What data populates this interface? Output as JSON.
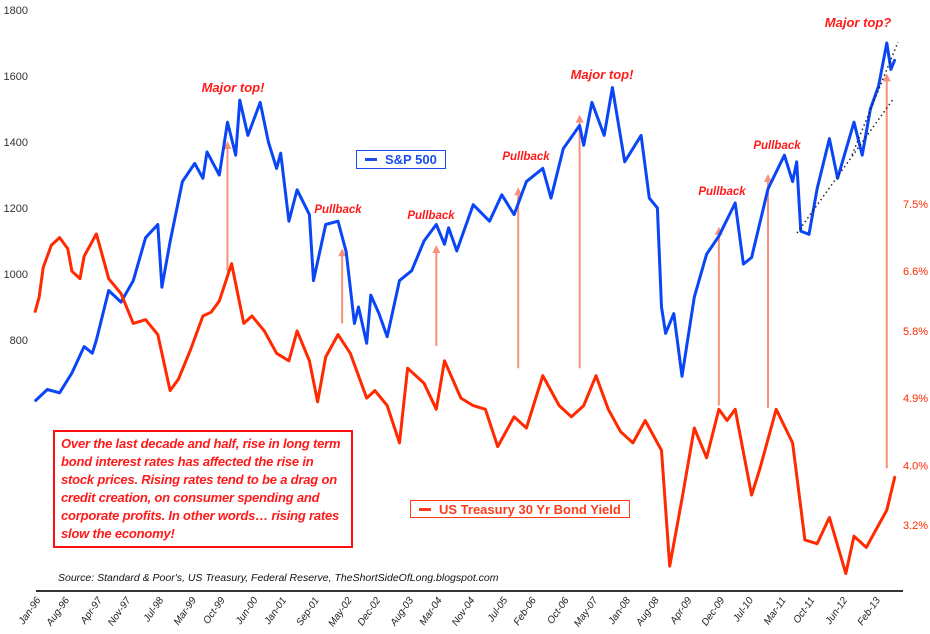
{
  "chart_data": {
    "type": "line",
    "title": "",
    "xlabel": "",
    "ylabel": "",
    "grid": false,
    "x_tick_labels": [
      "Jan-96",
      "Aug-96",
      "Apr-97",
      "Nov-97",
      "Jul-98",
      "Mar-99",
      "Oct-99",
      "Jun-00",
      "Jan-01",
      "Sep-01",
      "May-02",
      "Dec-02",
      "Aug-03",
      "Mar-04",
      "Nov-04",
      "Jul-05",
      "Feb-06",
      "Oct-06",
      "May-07",
      "Jan-08",
      "Aug-08",
      "Apr-09",
      "Dec-09",
      "Jul-10",
      "Mar-11",
      "Oct-11",
      "Jun-12",
      "Feb-13"
    ],
    "y_left": {
      "ticks": [
        "800",
        "1000",
        "1200",
        "1400",
        "1600",
        "1800"
      ],
      "range": [
        600,
        1800
      ]
    },
    "y_right": {
      "ticks": [
        "3.2%",
        "4.0%",
        "4.9%",
        "5.8%",
        "6.6%",
        "7.5%"
      ],
      "range_percent": [
        2.5,
        8.5
      ]
    },
    "series": [
      {
        "name": "S&P 500",
        "axis": "left",
        "color": "#0a46f5",
        "points": [
          [
            "1996-01",
            615
          ],
          [
            "1996-04",
            650
          ],
          [
            "1996-07",
            640
          ],
          [
            "1996-10",
            700
          ],
          [
            "1997-01",
            780
          ],
          [
            "1997-03",
            760
          ],
          [
            "1997-04",
            800
          ],
          [
            "1997-07",
            950
          ],
          [
            "1997-10",
            915
          ],
          [
            "1998-01",
            980
          ],
          [
            "1998-04",
            1110
          ],
          [
            "1998-07",
            1150
          ],
          [
            "1998-08",
            960
          ],
          [
            "1998-10",
            1098
          ],
          [
            "1999-01",
            1280
          ],
          [
            "1999-04",
            1335
          ],
          [
            "1999-06",
            1290
          ],
          [
            "1999-07",
            1370
          ],
          [
            "1999-10",
            1300
          ],
          [
            "1999-12",
            1460
          ],
          [
            "2000-02",
            1360
          ],
          [
            "2000-03",
            1527
          ],
          [
            "2000-05",
            1420
          ],
          [
            "2000-08",
            1520
          ],
          [
            "2000-10",
            1400
          ],
          [
            "2000-12",
            1320
          ],
          [
            "2001-01",
            1366
          ],
          [
            "2001-03",
            1160
          ],
          [
            "2001-05",
            1255
          ],
          [
            "2001-08",
            1180
          ],
          [
            "2001-09",
            980
          ],
          [
            "2001-12",
            1150
          ],
          [
            "2002-03",
            1160
          ],
          [
            "2002-05",
            1067
          ],
          [
            "2002-07",
            850
          ],
          [
            "2002-08",
            900
          ],
          [
            "2002-10",
            790
          ],
          [
            "2002-11",
            936
          ],
          [
            "2003-01",
            880
          ],
          [
            "2003-03",
            810
          ],
          [
            "2003-06",
            980
          ],
          [
            "2003-09",
            1010
          ],
          [
            "2003-12",
            1100
          ],
          [
            "2004-03",
            1150
          ],
          [
            "2004-05",
            1090
          ],
          [
            "2004-06",
            1140
          ],
          [
            "2004-08",
            1070
          ],
          [
            "2004-12",
            1210
          ],
          [
            "2005-04",
            1160
          ],
          [
            "2005-07",
            1240
          ],
          [
            "2005-10",
            1180
          ],
          [
            "2006-01",
            1280
          ],
          [
            "2006-05",
            1320
          ],
          [
            "2006-07",
            1230
          ],
          [
            "2006-10",
            1380
          ],
          [
            "2007-02",
            1450
          ],
          [
            "2007-03",
            1390
          ],
          [
            "2007-05",
            1520
          ],
          [
            "2007-08",
            1420
          ],
          [
            "2007-10",
            1565
          ],
          [
            "2008-01",
            1340
          ],
          [
            "2008-05",
            1420
          ],
          [
            "2008-07",
            1230
          ],
          [
            "2008-09",
            1200
          ],
          [
            "2008-10",
            900
          ],
          [
            "2008-11",
            820
          ],
          [
            "2009-01",
            880
          ],
          [
            "2009-03",
            690
          ],
          [
            "2009-06",
            930
          ],
          [
            "2009-09",
            1060
          ],
          [
            "2009-12",
            1115
          ],
          [
            "2010-04",
            1215
          ],
          [
            "2010-06",
            1030
          ],
          [
            "2010-08",
            1050
          ],
          [
            "2010-12",
            1258
          ],
          [
            "2011-04",
            1360
          ],
          [
            "2011-06",
            1280
          ],
          [
            "2011-07",
            1340
          ],
          [
            "2011-08",
            1130
          ],
          [
            "2011-10",
            1120
          ],
          [
            "2011-12",
            1258
          ],
          [
            "2012-03",
            1410
          ],
          [
            "2012-05",
            1290
          ],
          [
            "2012-09",
            1460
          ],
          [
            "2012-11",
            1360
          ],
          [
            "2013-01",
            1500
          ],
          [
            "2013-03",
            1570
          ],
          [
            "2013-05",
            1700
          ],
          [
            "2013-06",
            1620
          ],
          [
            "2013-07",
            1650
          ]
        ]
      },
      {
        "name": "US Treasury 30 Yr Bond Yield",
        "axis": "right",
        "color": "#ff2a00",
        "points": [
          [
            "1996-01",
            6.05
          ],
          [
            "1996-02",
            6.25
          ],
          [
            "1996-03",
            6.65
          ],
          [
            "1996-05",
            6.95
          ],
          [
            "1996-07",
            7.05
          ],
          [
            "1996-09",
            6.9
          ],
          [
            "1996-10",
            6.6
          ],
          [
            "1996-12",
            6.5
          ],
          [
            "1997-01",
            6.8
          ],
          [
            "1997-04",
            7.1
          ],
          [
            "1997-06",
            6.7
          ],
          [
            "1997-07",
            6.5
          ],
          [
            "1997-10",
            6.3
          ],
          [
            "1998-01",
            5.9
          ],
          [
            "1998-04",
            5.95
          ],
          [
            "1998-07",
            5.75
          ],
          [
            "1998-10",
            5.0
          ],
          [
            "1998-12",
            5.15
          ],
          [
            "1999-03",
            5.55
          ],
          [
            "1999-06",
            6.0
          ],
          [
            "1999-08",
            6.05
          ],
          [
            "1999-10",
            6.2
          ],
          [
            "2000-01",
            6.7
          ],
          [
            "2000-04",
            5.9
          ],
          [
            "2000-06",
            6.0
          ],
          [
            "2000-09",
            5.8
          ],
          [
            "2000-12",
            5.5
          ],
          [
            "2001-03",
            5.4
          ],
          [
            "2001-05",
            5.8
          ],
          [
            "2001-08",
            5.4
          ],
          [
            "2001-10",
            4.85
          ],
          [
            "2001-12",
            5.45
          ],
          [
            "2002-03",
            5.75
          ],
          [
            "2002-06",
            5.5
          ],
          [
            "2002-10",
            4.9
          ],
          [
            "2002-12",
            5.0
          ],
          [
            "2003-03",
            4.8
          ],
          [
            "2003-06",
            4.3
          ],
          [
            "2003-08",
            5.3
          ],
          [
            "2003-12",
            5.1
          ],
          [
            "2004-03",
            4.75
          ],
          [
            "2004-05",
            5.4
          ],
          [
            "2004-09",
            4.9
          ],
          [
            "2004-12",
            4.8
          ],
          [
            "2005-03",
            4.75
          ],
          [
            "2005-06",
            4.25
          ],
          [
            "2005-10",
            4.65
          ],
          [
            "2006-01",
            4.5
          ],
          [
            "2006-05",
            5.2
          ],
          [
            "2006-09",
            4.8
          ],
          [
            "2006-12",
            4.65
          ],
          [
            "2007-03",
            4.8
          ],
          [
            "2007-06",
            5.2
          ],
          [
            "2007-09",
            4.75
          ],
          [
            "2007-12",
            4.45
          ],
          [
            "2008-03",
            4.3
          ],
          [
            "2008-06",
            4.6
          ],
          [
            "2008-10",
            4.2
          ],
          [
            "2008-12",
            2.65
          ],
          [
            "2009-03",
            3.55
          ],
          [
            "2009-06",
            4.5
          ],
          [
            "2009-09",
            4.1
          ],
          [
            "2009-12",
            4.75
          ],
          [
            "2010-02",
            4.6
          ],
          [
            "2010-04",
            4.75
          ],
          [
            "2010-08",
            3.6
          ],
          [
            "2010-10",
            3.95
          ],
          [
            "2011-02",
            4.75
          ],
          [
            "2011-06",
            4.3
          ],
          [
            "2011-09",
            3.0
          ],
          [
            "2011-12",
            2.95
          ],
          [
            "2012-03",
            3.3
          ],
          [
            "2012-07",
            2.55
          ],
          [
            "2012-09",
            3.05
          ],
          [
            "2012-12",
            2.9
          ],
          [
            "2013-03",
            3.2
          ],
          [
            "2013-05",
            3.4
          ],
          [
            "2013-07",
            3.85
          ]
        ]
      }
    ],
    "annotations": [
      {
        "text": "Major top!",
        "date": "1999-12",
        "yield_from": 6.6,
        "sp_to": 1400
      },
      {
        "text": "Pullback",
        "date": "2002-04",
        "yield_from": 5.9,
        "sp_to": 1075
      },
      {
        "text": "Pullback",
        "date": "2004-03",
        "yield_from": 5.6,
        "sp_to": 1085
      },
      {
        "text": "Pullback",
        "date": "2005-11",
        "yield_from": 5.3,
        "sp_to": 1260
      },
      {
        "text": "Major top!",
        "date": "2007-02",
        "yield_from": 5.3,
        "sp_to": 1480
      },
      {
        "text": "Pullback",
        "date": "2009-12",
        "yield_from": 4.8,
        "sp_to": 1140
      },
      {
        "text": "Pullback",
        "date": "2010-12",
        "yield_from": 4.77,
        "sp_to": 1300
      },
      {
        "text": "Major top?",
        "date": "2013-05",
        "yield_from": 3.96,
        "sp_to": 1605
      }
    ],
    "arrow_color": "#f7917a"
  },
  "legend": {
    "sp": "S&P 500",
    "bond": "US Treasury 30 Yr Bond Yield"
  },
  "note": "Over the last decade and half, rise in long term bond interest rates has affected the rise in stock prices. Rising rates tend to be a drag on credit  creation, on consumer spending and corporate profits. In other words…  rising rates slow the  economy!",
  "source": "Source: Standard & Poor's, US Treasury, Federal Reserve, TheShortSideOfLong.blogspot.com"
}
